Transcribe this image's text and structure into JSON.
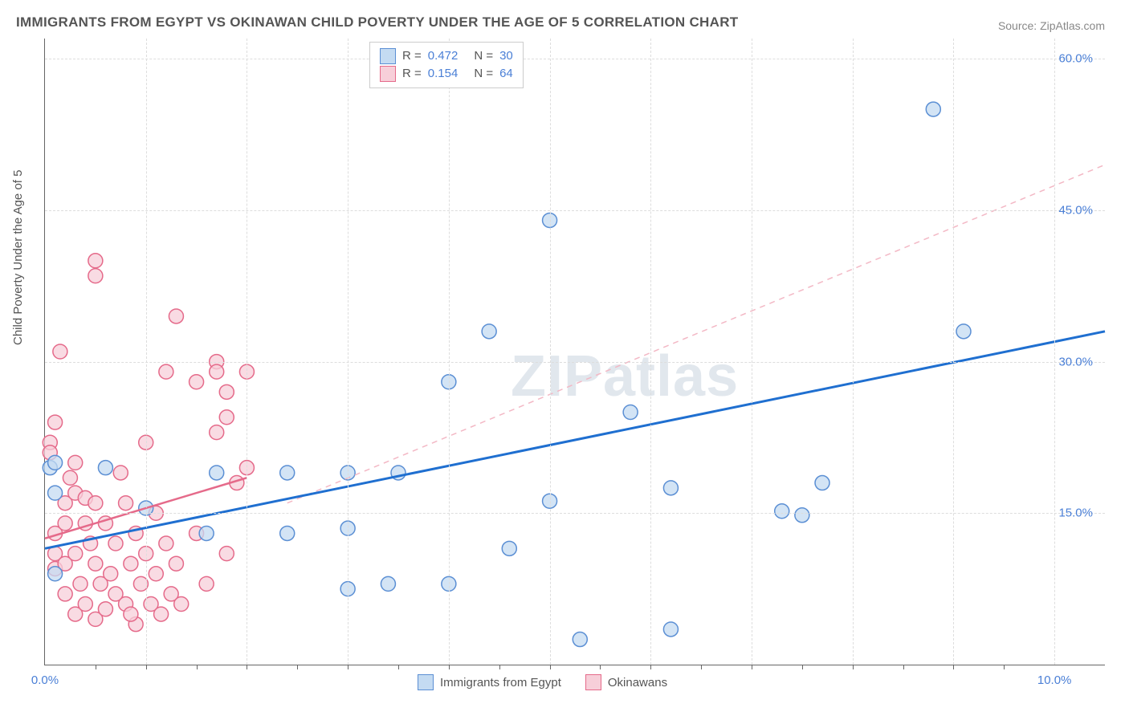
{
  "title": "IMMIGRANTS FROM EGYPT VS OKINAWAN CHILD POVERTY UNDER THE AGE OF 5 CORRELATION CHART",
  "source": "Source: ZipAtlas.com",
  "yaxis_label": "Child Poverty Under the Age of 5",
  "watermark_zip": "ZIP",
  "watermark_atlas": "atlas",
  "chart": {
    "type": "scatter",
    "xlim": [
      0,
      10.5
    ],
    "ylim": [
      0,
      62
    ],
    "x_ticks": [
      0,
      10
    ],
    "x_tick_labels": [
      "0.0%",
      "10.0%"
    ],
    "x_minor_ticks": [
      0.5,
      1,
      1.5,
      2,
      2.5,
      3,
      3.5,
      4,
      4.5,
      5,
      5.5,
      6,
      6.5,
      7,
      7.5,
      8,
      8.5,
      9,
      9.5
    ],
    "y_ticks": [
      15,
      30,
      45,
      60
    ],
    "y_tick_labels": [
      "15.0%",
      "30.0%",
      "45.0%",
      "60.0%"
    ],
    "background_color": "#ffffff",
    "grid_color": "#dddddd",
    "series": [
      {
        "name": "Immigrants from Egypt",
        "fill_color": "#c4dbf2",
        "stroke_color": "#5b8fd4",
        "marker_radius": 9,
        "R": "0.472",
        "N": "30",
        "trend_solid": {
          "x1": 0,
          "y1": 11.5,
          "x2": 10.5,
          "y2": 33,
          "color": "#1f6fd0",
          "width": 3
        },
        "trend_dashed": {
          "x1": 2.4,
          "y1": 16.0,
          "x2": 10.5,
          "y2": 49.5,
          "color": "#f3b8c5",
          "width": 1.5
        },
        "points": [
          [
            0.05,
            19.5
          ],
          [
            0.1,
            20
          ],
          [
            0.1,
            17
          ],
          [
            0.1,
            9
          ],
          [
            0.6,
            19.5
          ],
          [
            1.0,
            15.5
          ],
          [
            4.4,
            33
          ],
          [
            5.0,
            44
          ],
          [
            9.1,
            33
          ],
          [
            8.8,
            55
          ],
          [
            2.4,
            19
          ],
          [
            2.4,
            13
          ],
          [
            3.0,
            19
          ],
          [
            3.0,
            13.5
          ],
          [
            3.5,
            19
          ],
          [
            4.0,
            28
          ],
          [
            5.0,
            16.2
          ],
          [
            5.3,
            2.5
          ],
          [
            5.8,
            25
          ],
          [
            6.2,
            17.5
          ],
          [
            7.3,
            15.2
          ],
          [
            7.5,
            14.8
          ],
          [
            7.7,
            18
          ],
          [
            4.6,
            11.5
          ],
          [
            4.0,
            8
          ],
          [
            3.4,
            8
          ],
          [
            3.0,
            7.5
          ],
          [
            1.6,
            13
          ],
          [
            1.7,
            19
          ],
          [
            6.2,
            3.5
          ]
        ]
      },
      {
        "name": "Okinawans",
        "fill_color": "#f7cfd9",
        "stroke_color": "#e56a8a",
        "marker_radius": 9,
        "R": "0.154",
        "N": "64",
        "trend_solid": {
          "x1": 0,
          "y1": 12.5,
          "x2": 2.0,
          "y2": 18.5,
          "color": "#e56a8a",
          "width": 2.5
        },
        "points": [
          [
            0.1,
            24
          ],
          [
            0.05,
            22
          ],
          [
            0.05,
            21
          ],
          [
            0.1,
            13
          ],
          [
            0.1,
            11
          ],
          [
            0.1,
            9.5
          ],
          [
            0.15,
            31
          ],
          [
            0.2,
            16
          ],
          [
            0.2,
            14
          ],
          [
            0.2,
            10
          ],
          [
            0.2,
            7
          ],
          [
            0.25,
            18.5
          ],
          [
            0.3,
            20
          ],
          [
            0.3,
            17
          ],
          [
            0.3,
            11
          ],
          [
            0.3,
            5
          ],
          [
            0.35,
            8
          ],
          [
            0.4,
            16.5
          ],
          [
            0.4,
            14
          ],
          [
            0.4,
            6
          ],
          [
            0.45,
            12
          ],
          [
            0.5,
            40
          ],
          [
            0.5,
            38.5
          ],
          [
            0.5,
            16
          ],
          [
            0.5,
            10
          ],
          [
            0.5,
            4.5
          ],
          [
            0.55,
            8
          ],
          [
            0.6,
            14
          ],
          [
            0.6,
            5.5
          ],
          [
            0.65,
            9
          ],
          [
            0.7,
            12
          ],
          [
            0.7,
            7
          ],
          [
            0.75,
            19
          ],
          [
            0.8,
            16
          ],
          [
            0.8,
            6
          ],
          [
            0.85,
            10
          ],
          [
            0.9,
            13
          ],
          [
            0.9,
            4
          ],
          [
            0.95,
            8
          ],
          [
            1.0,
            22
          ],
          [
            1.0,
            11
          ],
          [
            1.05,
            6
          ],
          [
            1.1,
            15
          ],
          [
            1.1,
            9
          ],
          [
            1.15,
            5
          ],
          [
            1.2,
            29
          ],
          [
            1.2,
            12
          ],
          [
            1.25,
            7
          ],
          [
            1.3,
            34.5
          ],
          [
            1.3,
            10
          ],
          [
            1.35,
            6
          ],
          [
            1.5,
            28
          ],
          [
            1.5,
            13
          ],
          [
            1.6,
            8
          ],
          [
            1.7,
            30
          ],
          [
            1.7,
            29
          ],
          [
            1.7,
            23
          ],
          [
            1.8,
            24.5
          ],
          [
            1.8,
            27
          ],
          [
            1.8,
            11
          ],
          [
            1.9,
            18
          ],
          [
            2.0,
            29
          ],
          [
            2.0,
            19.5
          ],
          [
            0.85,
            5
          ]
        ]
      }
    ]
  },
  "legend_bottom": [
    {
      "label": "Immigrants from Egypt",
      "fill": "#c4dbf2",
      "stroke": "#5b8fd4"
    },
    {
      "label": "Okinawans",
      "fill": "#f7cfd9",
      "stroke": "#e56a8a"
    }
  ],
  "r_legend_header": {
    "r_label": "R =",
    "n_label": "N ="
  }
}
